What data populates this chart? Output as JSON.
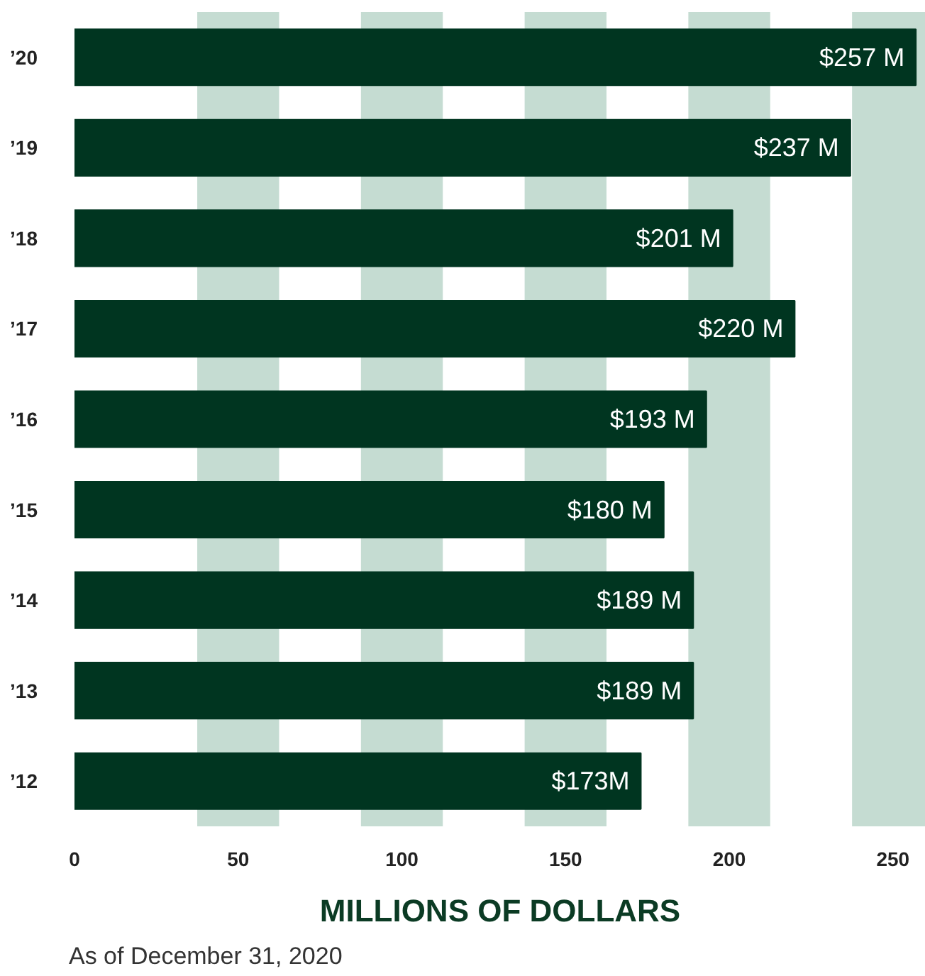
{
  "chart_data": {
    "type": "bar",
    "orientation": "horizontal",
    "xlabel": "MILLIONS OF DOLLARS",
    "annotations": [
      "As of December 31, 2020"
    ],
    "categories": [
      "’20",
      "’19",
      "’18",
      "’17",
      "’16",
      "’15",
      "’14",
      "’13",
      "’12"
    ],
    "values": [
      257,
      237,
      201,
      220,
      193,
      180,
      189,
      189,
      173
    ],
    "value_labels": [
      "$257 M",
      "$237 M",
      "$201 M",
      "$220 M",
      "$193 M",
      "$180 M",
      "$189 M",
      "$189 M",
      "$173M"
    ],
    "color": "#003520",
    "xlim": [
      0,
      260
    ],
    "xticks": [
      0,
      50,
      100,
      150,
      200,
      250
    ],
    "grid": false,
    "bands": [
      {
        "axis": "x",
        "from": 37.5,
        "to": 62.5,
        "color": "#c5dcd2"
      },
      {
        "axis": "x",
        "from": 87.5,
        "to": 112.5,
        "color": "#c5dcd2"
      },
      {
        "axis": "x",
        "from": 137.5,
        "to": 162.5,
        "color": "#c5dcd2"
      },
      {
        "axis": "x",
        "from": 187.5,
        "to": 212.5,
        "color": "#c5dcd2"
      },
      {
        "axis": "x",
        "from": 237.5,
        "to": 262.5,
        "color": "#c5dcd2"
      }
    ]
  }
}
